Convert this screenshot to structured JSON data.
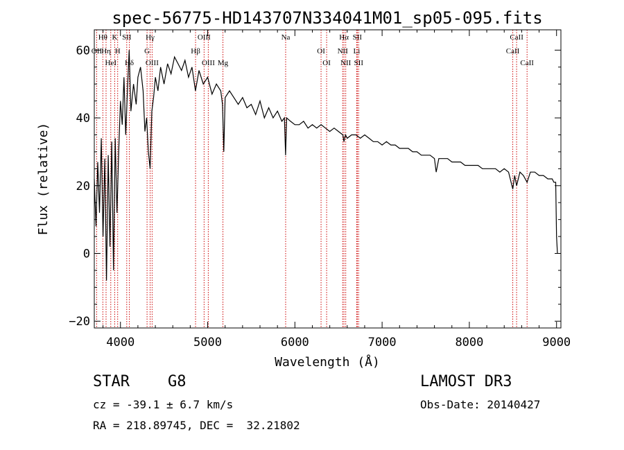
{
  "chart_data": {
    "type": "line",
    "title": "spec-56775-HD143707N334041M01_sp05-095.fits",
    "xlabel": "Wavelength (Å)",
    "ylabel": "Flux (relative)",
    "xlim": [
      3700,
      9050
    ],
    "ylim": [
      -22,
      66
    ],
    "x_ticks": [
      4000,
      5000,
      6000,
      7000,
      8000,
      9000
    ],
    "y_ticks": [
      -20,
      0,
      20,
      40,
      60
    ],
    "series": [
      {
        "name": "flux",
        "x": [
          3700,
          3720,
          3740,
          3760,
          3780,
          3800,
          3820,
          3840,
          3860,
          3880,
          3900,
          3920,
          3940,
          3960,
          3980,
          4000,
          4020,
          4040,
          4060,
          4080,
          4100,
          4120,
          4150,
          4180,
          4200,
          4230,
          4260,
          4280,
          4300,
          4320,
          4340,
          4360,
          4380,
          4400,
          4430,
          4460,
          4500,
          4540,
          4580,
          4620,
          4660,
          4700,
          4740,
          4780,
          4820,
          4860,
          4900,
          4950,
          5000,
          5050,
          5100,
          5150,
          5170,
          5185,
          5200,
          5250,
          5300,
          5350,
          5400,
          5450,
          5500,
          5550,
          5600,
          5650,
          5700,
          5750,
          5800,
          5850,
          5880,
          5893,
          5905,
          5950,
          6000,
          6050,
          6100,
          6150,
          6200,
          6250,
          6300,
          6350,
          6400,
          6450,
          6500,
          6550,
          6563,
          6580,
          6600,
          6650,
          6700,
          6750,
          6800,
          6850,
          6900,
          6950,
          7000,
          7050,
          7100,
          7150,
          7200,
          7250,
          7300,
          7350,
          7400,
          7450,
          7500,
          7550,
          7600,
          7620,
          7650,
          7700,
          7750,
          7800,
          7850,
          7900,
          7950,
          8000,
          8050,
          8100,
          8150,
          8200,
          8250,
          8300,
          8350,
          8400,
          8450,
          8498,
          8520,
          8542,
          8580,
          8620,
          8662,
          8700,
          8750,
          8800,
          8850,
          8900,
          8950,
          8970,
          8990,
          9000,
          9010
        ],
        "y": [
          22,
          8,
          27,
          12,
          34,
          5,
          28,
          -8,
          29,
          2,
          33,
          -5,
          34,
          12,
          30,
          45,
          38,
          52,
          35,
          48,
          60,
          42,
          50,
          44,
          52,
          55,
          48,
          36,
          40,
          30,
          25,
          42,
          46,
          52,
          48,
          55,
          50,
          56,
          53,
          58,
          56,
          54,
          57,
          52,
          55,
          48,
          54,
          50,
          52,
          47,
          50,
          48,
          44,
          30,
          46,
          48,
          46,
          44,
          46,
          43,
          44,
          41,
          45,
          40,
          43,
          40,
          42,
          39,
          40,
          29,
          40,
          39,
          38,
          38,
          39,
          37,
          38,
          37,
          38,
          37,
          36,
          37,
          36,
          35,
          33,
          35,
          34,
          35,
          35,
          34,
          35,
          34,
          33,
          33,
          32,
          33,
          32,
          32,
          31,
          31,
          31,
          30,
          30,
          29,
          29,
          29,
          28,
          24,
          28,
          28,
          28,
          27,
          27,
          27,
          26,
          26,
          26,
          26,
          25,
          25,
          25,
          25,
          24,
          25,
          24,
          19,
          23,
          20,
          24,
          23,
          21,
          24,
          24,
          23,
          23,
          22,
          22,
          21,
          21,
          5,
          0
        ]
      }
    ],
    "spectral_lines": [
      {
        "label": "Hθ",
        "wavelength": 3798
      },
      {
        "label": "OII",
        "wavelength": 3727
      },
      {
        "label": "HeI",
        "wavelength": 3889
      },
      {
        "label": "K",
        "wavelength": 3934
      },
      {
        "label": "Hη",
        "wavelength": 3835
      },
      {
        "label": "Hδ",
        "wavelength": 4102
      },
      {
        "label": "SII",
        "wavelength": 4072
      },
      {
        "label": "H",
        "wavelength": 3968
      },
      {
        "label": "OIII",
        "wavelength": 4363
      },
      {
        "label": "Hγ",
        "wavelength": 4340
      },
      {
        "label": "G",
        "wavelength": 4305
      },
      {
        "label": "OIII",
        "wavelength": 5007
      },
      {
        "label": "OIII",
        "wavelength": 4959
      },
      {
        "label": "Hβ",
        "wavelength": 4861
      },
      {
        "label": "Mg",
        "wavelength": 5175
      },
      {
        "label": "Na",
        "wavelength": 5894
      },
      {
        "label": "OI",
        "wavelength": 6300
      },
      {
        "label": "OI",
        "wavelength": 6364
      },
      {
        "label": "Hα",
        "wavelength": 6563
      },
      {
        "label": "NII",
        "wavelength": 6548
      },
      {
        "label": "NII",
        "wavelength": 6583
      },
      {
        "label": "SII",
        "wavelength": 6716
      },
      {
        "label": "Li",
        "wavelength": 6708
      },
      {
        "label": "SII",
        "wavelength": 6731
      },
      {
        "label": "CaII",
        "wavelength": 8542
      },
      {
        "label": "CaII",
        "wavelength": 8498
      },
      {
        "label": "CaII",
        "wavelength": 8662
      }
    ]
  },
  "info": {
    "object_class": "STAR",
    "subclass": "G8",
    "survey": "LAMOST DR3",
    "velocity": "cz = -39.1 ± 6.7 km/s",
    "obs_date": "Obs-Date: 20140427",
    "coords": "RA = 218.89745, DEC =  32.21802"
  },
  "colors": {
    "line": "#000000",
    "axis": "#000000",
    "marker": "#cc0000"
  }
}
